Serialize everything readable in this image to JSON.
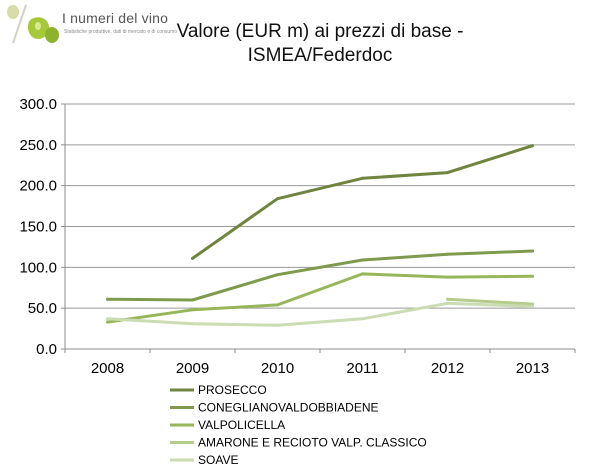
{
  "logo": {
    "name": "I numeri del vino",
    "tagline": "Statistiche produttive, dati di mercato e di consumo"
  },
  "chart_data": {
    "type": "line",
    "title": "Valore (EUR m) ai prezzi di base - ISMEA/Federdoc",
    "xlabel": "",
    "ylabel": "",
    "categories": [
      "2008",
      "2009",
      "2010",
      "2011",
      "2012",
      "2013"
    ],
    "ylim": [
      0,
      300
    ],
    "yticks": [
      "0.0",
      "50.0",
      "100.0",
      "150.0",
      "200.0",
      "250.0",
      "300.0"
    ],
    "grid": true,
    "legend_position": "bottom",
    "series": [
      {
        "name": "PROSECCO",
        "color": "#70843f",
        "values": [
          null,
          111,
          184,
          209,
          216,
          249
        ]
      },
      {
        "name": "CONEGLIANOVALDOBBIADENE",
        "color": "#7e9a4c",
        "values": [
          61,
          60,
          91,
          109,
          116,
          120
        ]
      },
      {
        "name": "VALPOLICELLA",
        "color": "#97b65a",
        "values": [
          33,
          48,
          54,
          92,
          88,
          89
        ]
      },
      {
        "name": "AMARONE E RECIOTO VALP. CLASSICO",
        "color": "#b5cc8c",
        "values": [
          null,
          null,
          null,
          null,
          61,
          55
        ]
      },
      {
        "name": "SOAVE",
        "color": "#cbdbb2",
        "values": [
          37,
          31,
          29,
          37,
          56,
          52
        ]
      }
    ]
  }
}
